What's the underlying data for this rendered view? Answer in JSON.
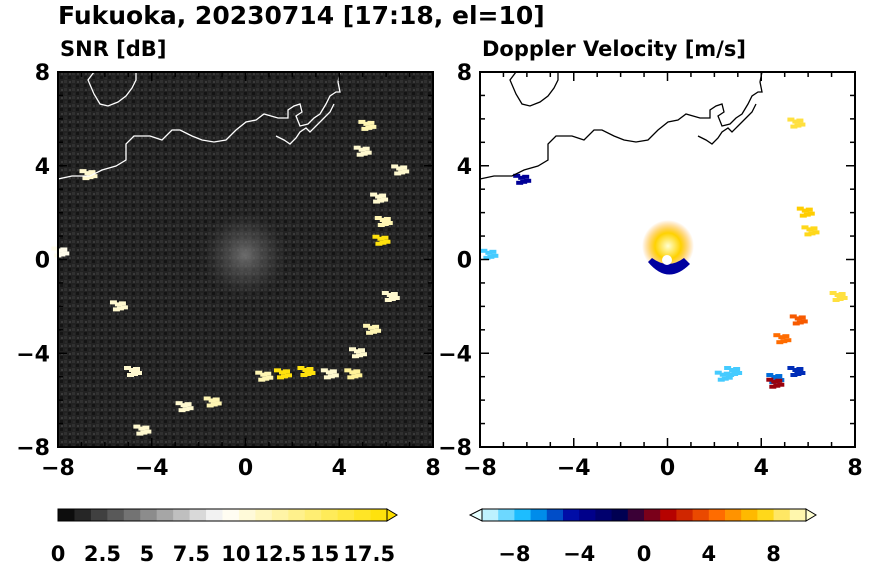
{
  "title": "Fukuoka, 20230714 [17:18, el=10]",
  "colors": {
    "axis": "#000000",
    "snr_background": "#1e1e1e",
    "coastline_on_dark": "#ffffff",
    "coastline_on_light": "#000000"
  },
  "chart_data": [
    {
      "type": "heatmap",
      "title": "SNR [dB]",
      "xlim": [
        -8,
        8
      ],
      "ylim": [
        -8,
        8
      ],
      "x_ticks": [
        "−8",
        "−4",
        "0",
        "4",
        "8"
      ],
      "y_ticks": [
        "8",
        "4",
        "0",
        "−4",
        "−8"
      ],
      "colorbar": {
        "ticks": [
          "0",
          "2.5",
          "5",
          "7.5",
          "10",
          "12.5",
          "15",
          "17.5"
        ],
        "range": [
          0,
          18.5
        ],
        "colors": [
          "#000000",
          "#ffffff",
          "#ffe000"
        ],
        "extend": "max"
      },
      "echoes": [
        {
          "x": 5.8,
          "y": 0.8,
          "value": 18
        },
        {
          "x": 5.9,
          "y": 1.6,
          "value": 12
        },
        {
          "x": 5.7,
          "y": 2.6,
          "value": 11
        },
        {
          "x": 6.2,
          "y": -1.6,
          "value": 11
        },
        {
          "x": 5.4,
          "y": -3.0,
          "value": 12
        },
        {
          "x": 4.8,
          "y": -4.0,
          "value": 11
        },
        {
          "x": 4.6,
          "y": -4.9,
          "value": 13
        },
        {
          "x": 3.6,
          "y": -4.9,
          "value": 11
        },
        {
          "x": 2.6,
          "y": -4.8,
          "value": 18
        },
        {
          "x": 1.6,
          "y": -4.9,
          "value": 18
        },
        {
          "x": 0.8,
          "y": -5.0,
          "value": 12
        },
        {
          "x": -1.4,
          "y": -6.1,
          "value": 12
        },
        {
          "x": -2.6,
          "y": -6.3,
          "value": 11
        },
        {
          "x": -4.4,
          "y": -7.3,
          "value": 11
        },
        {
          "x": -4.8,
          "y": -4.8,
          "value": 11
        },
        {
          "x": -5.4,
          "y": -2.0,
          "value": 11
        },
        {
          "x": -7.9,
          "y": 0.3,
          "value": 10
        },
        {
          "x": 5.2,
          "y": 5.7,
          "value": 12
        },
        {
          "x": 5.0,
          "y": 4.6,
          "value": 11
        },
        {
          "x": 6.6,
          "y": 3.8,
          "value": 11
        },
        {
          "x": -6.7,
          "y": 3.6,
          "value": 11
        }
      ]
    },
    {
      "type": "heatmap",
      "title": "Doppler Velocity [m/s]",
      "xlim": [
        -8,
        8
      ],
      "ylim": [
        -8,
        8
      ],
      "x_ticks": [
        "−8",
        "−4",
        "0",
        "4",
        "8"
      ],
      "y_ticks": [
        "8",
        "4",
        "0",
        "−4",
        "−8"
      ],
      "colorbar": {
        "ticks": [
          "−8",
          "−4",
          "0",
          "4",
          "8"
        ],
        "range": [
          -10,
          10
        ],
        "colors": [
          "#e6ffff",
          "#00b4ff",
          "#0000a0",
          "#000050",
          "#b40000",
          "#ff6400",
          "#ffd200",
          "#ffffd2"
        ],
        "extend": "both"
      },
      "echoes": [
        {
          "x": 6.1,
          "y": 1.2,
          "value": 7.5
        },
        {
          "x": 5.9,
          "y": 2.0,
          "value": 7
        },
        {
          "x": 7.3,
          "y": -1.6,
          "value": 8
        },
        {
          "x": 5.6,
          "y": -2.6,
          "value": 4
        },
        {
          "x": 4.9,
          "y": -3.4,
          "value": 4.5
        },
        {
          "x": 5.5,
          "y": -4.8,
          "value": -5
        },
        {
          "x": 4.6,
          "y": -5.1,
          "value": -6
        },
        {
          "x": 4.6,
          "y": -5.3,
          "value": 1
        },
        {
          "x": 2.8,
          "y": -4.8,
          "value": -8
        },
        {
          "x": 2.4,
          "y": -5.0,
          "value": -8
        },
        {
          "x": -6.2,
          "y": 3.4,
          "value": -4
        },
        {
          "x": -7.6,
          "y": 0.2,
          "value": -8
        },
        {
          "x": 5.5,
          "y": 5.8,
          "value": 8
        }
      ]
    }
  ]
}
